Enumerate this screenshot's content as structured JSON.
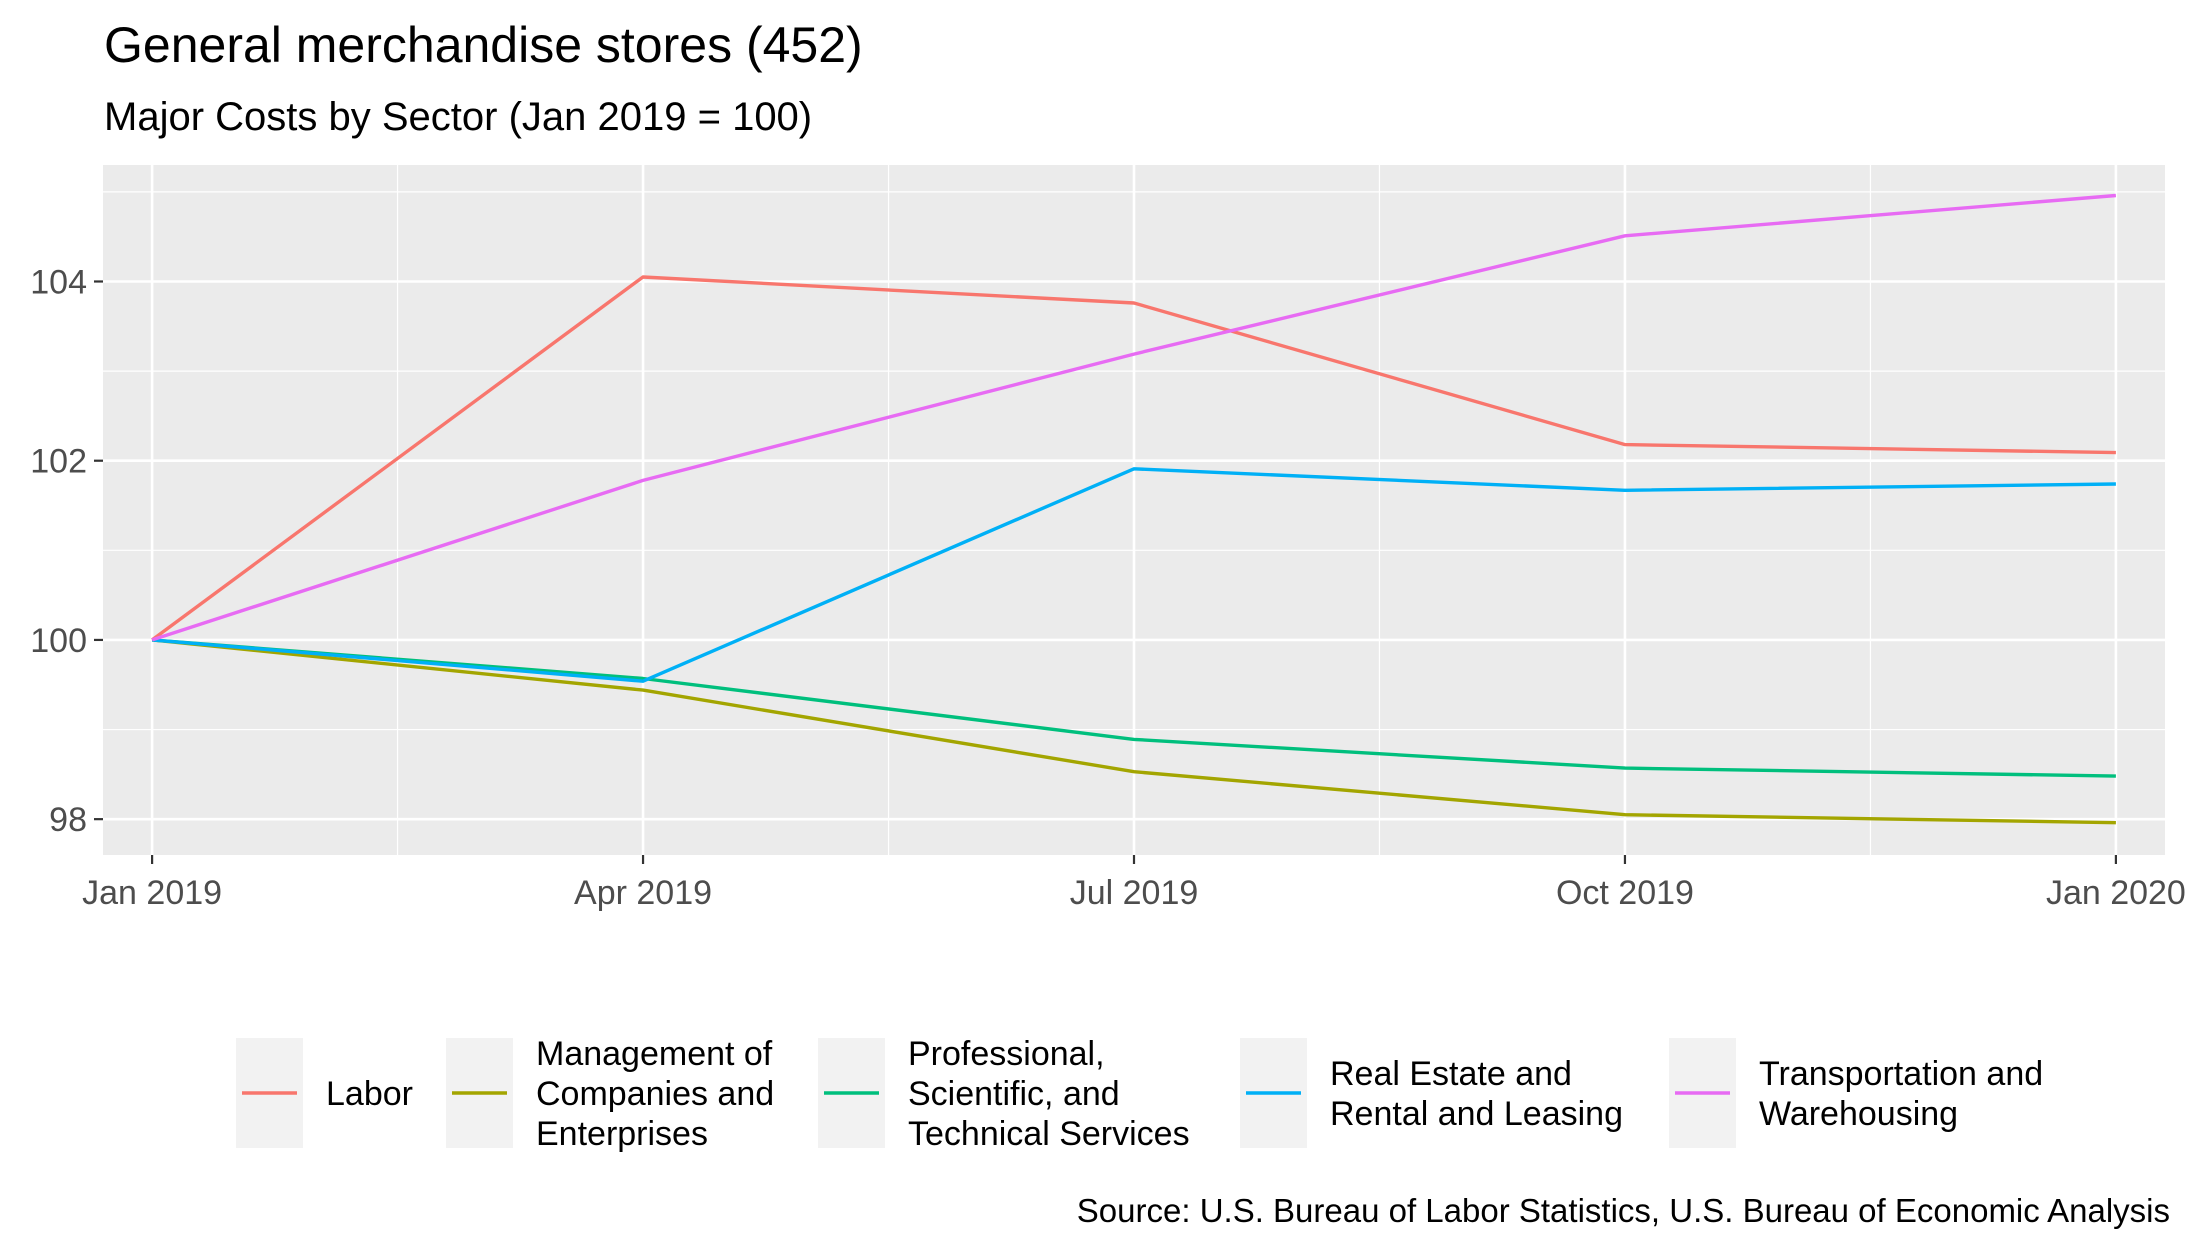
{
  "chart_data": {
    "type": "line",
    "title": "General merchandise stores (452)",
    "subtitle": "Major Costs by Sector (Jan 2019 = 100)",
    "caption": "Source: U.S. Bureau of Labor Statistics, U.S. Bureau of Economic Analysis",
    "xlabel": "",
    "ylabel": "",
    "x": [
      "Jan 2019",
      "Apr 2019",
      "Jul 2019",
      "Oct 2019",
      "Jan 2020"
    ],
    "x_ticks": [
      "Jan 2019",
      "Apr 2019",
      "Jul 2019",
      "Oct 2019",
      "Jan 2020"
    ],
    "y_ticks": [
      98,
      100,
      102,
      104
    ],
    "ylim": [
      97.6,
      105.3
    ],
    "grid": true,
    "legend_position": "bottom",
    "series": [
      {
        "name": "Labor",
        "legend_lines": [
          "Labor"
        ],
        "color": "#F8766D",
        "values": [
          100,
          104.05,
          103.76,
          102.18,
          102.09
        ]
      },
      {
        "name": "Management of Companies and Enterprises",
        "legend_lines": [
          "Management of",
          "Companies and",
          "Enterprises"
        ],
        "color": "#A3A500",
        "values": [
          100,
          99.44,
          98.53,
          98.05,
          97.96
        ]
      },
      {
        "name": "Professional, Scientific, and Technical Services",
        "legend_lines": [
          "Professional,",
          "Scientific, and",
          "Technical Services"
        ],
        "color": "#00BF7D",
        "values": [
          100,
          99.57,
          98.89,
          98.57,
          98.48
        ]
      },
      {
        "name": "Real Estate and Rental and Leasing",
        "legend_lines": [
          "Real Estate and",
          "Rental and Leasing"
        ],
        "color": "#00B0F6",
        "values": [
          100,
          99.54,
          101.91,
          101.67,
          101.74
        ]
      },
      {
        "name": "Transportation and Warehousing",
        "legend_lines": [
          "Transportation and",
          "Warehousing"
        ],
        "color": "#E76BF3",
        "values": [
          100,
          101.78,
          103.19,
          104.51,
          104.96
        ]
      }
    ]
  }
}
